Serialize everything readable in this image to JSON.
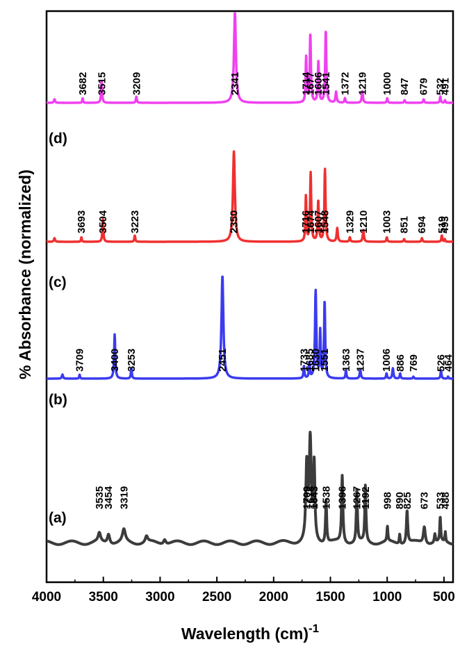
{
  "chart_data": {
    "type": "line",
    "title": "",
    "xlabel": "Wavelength (cm)",
    "xlabel_superscript": "-1",
    "ylabel": "% Absorbance (normalized)",
    "xlim": [
      4000,
      420
    ],
    "x_reversed": true,
    "x_ticks": [
      4000,
      3500,
      3000,
      2500,
      2000,
      1500,
      1000,
      500
    ],
    "series": [
      {
        "name": "(a)",
        "color": "#3c3c3c",
        "peaks": [
          {
            "x": 3535,
            "h": 0.07,
            "w": 25,
            "label": "3535"
          },
          {
            "x": 3454,
            "h": 0.08,
            "w": 25,
            "label": "3454"
          },
          {
            "x": 3319,
            "h": 0.1,
            "w": 30,
            "label": "3319"
          },
          {
            "x": 3120,
            "h": 0.05,
            "w": 25
          },
          {
            "x": 2960,
            "h": 0.04,
            "w": 25
          },
          {
            "x": 1709,
            "h": 0.6,
            "w": 18,
            "label": "1709"
          },
          {
            "x": 1678,
            "h": 0.82,
            "w": 22,
            "label": "1678"
          },
          {
            "x": 1643,
            "h": 0.62,
            "w": 15,
            "label": "1643"
          },
          {
            "x": 1538,
            "h": 0.35,
            "w": 12,
            "label": "1538"
          },
          {
            "x": 1396,
            "h": 0.55,
            "w": 14,
            "label": "1396"
          },
          {
            "x": 1267,
            "h": 0.44,
            "w": 12,
            "label": "1267"
          },
          {
            "x": 1192,
            "h": 0.46,
            "w": 12,
            "label": "1192"
          },
          {
            "x": 998,
            "h": 0.12,
            "w": 10,
            "label": "998"
          },
          {
            "x": 890,
            "h": 0.08,
            "w": 10,
            "label": "890"
          },
          {
            "x": 825,
            "h": 0.27,
            "w": 14,
            "label": "825"
          },
          {
            "x": 673,
            "h": 0.14,
            "w": 20,
            "label": "673"
          },
          {
            "x": 580,
            "h": 0.07,
            "w": 12
          },
          {
            "x": 533,
            "h": 0.2,
            "w": 10,
            "label": "533"
          },
          {
            "x": 488,
            "h": 0.08,
            "w": 8,
            "label": "488"
          }
        ]
      },
      {
        "name": "(b)",
        "color": "#3b3bf0",
        "peaks": [
          {
            "x": 3860,
            "h": 0.04,
            "w": 12
          },
          {
            "x": 3709,
            "h": 0.04,
            "w": 8,
            "label": "3709"
          },
          {
            "x": 3400,
            "h": 0.43,
            "w": 12,
            "label": "3400"
          },
          {
            "x": 3253,
            "h": 0.1,
            "w": 10,
            "label": "3253"
          },
          {
            "x": 2451,
            "h": 1.0,
            "w": 20,
            "label": "2451"
          },
          {
            "x": 1733,
            "h": 0.12,
            "w": 10,
            "label": "1733"
          },
          {
            "x": 1685,
            "h": 0.15,
            "w": 10,
            "label": "1685"
          },
          {
            "x": 1630,
            "h": 0.85,
            "w": 14,
            "label": "1630"
          },
          {
            "x": 1590,
            "h": 0.45,
            "w": 10
          },
          {
            "x": 1551,
            "h": 0.75,
            "w": 12,
            "label": "1551"
          },
          {
            "x": 1363,
            "h": 0.08,
            "w": 10,
            "label": "1363"
          },
          {
            "x": 1237,
            "h": 0.09,
            "w": 12,
            "label": "1237"
          },
          {
            "x": 1006,
            "h": 0.05,
            "w": 10,
            "label": "1006"
          },
          {
            "x": 950,
            "h": 0.1,
            "w": 12
          },
          {
            "x": 886,
            "h": 0.05,
            "w": 10,
            "label": "886"
          },
          {
            "x": 769,
            "h": 0.02,
            "w": 10,
            "label": "769"
          },
          {
            "x": 526,
            "h": 0.08,
            "w": 10,
            "label": "526"
          },
          {
            "x": 464,
            "h": 0.02,
            "w": 8,
            "label": "464"
          }
        ]
      },
      {
        "name": "(c)",
        "color": "#f03030",
        "peaks": [
          {
            "x": 3930,
            "h": 0.04,
            "w": 12
          },
          {
            "x": 3693,
            "h": 0.05,
            "w": 8,
            "label": "3693"
          },
          {
            "x": 3504,
            "h": 0.25,
            "w": 10,
            "label": "3504"
          },
          {
            "x": 3223,
            "h": 0.07,
            "w": 10,
            "label": "3223"
          },
          {
            "x": 2350,
            "h": 1.0,
            "w": 20,
            "label": "2350"
          },
          {
            "x": 1716,
            "h": 0.5,
            "w": 10,
            "label": "1716"
          },
          {
            "x": 1674,
            "h": 0.76,
            "w": 12,
            "label": "1674"
          },
          {
            "x": 1607,
            "h": 0.45,
            "w": 12,
            "label": "1607"
          },
          {
            "x": 1548,
            "h": 0.8,
            "w": 12,
            "label": "1548"
          },
          {
            "x": 1440,
            "h": 0.15,
            "w": 12
          },
          {
            "x": 1329,
            "h": 0.05,
            "w": 10,
            "label": "1329"
          },
          {
            "x": 1210,
            "h": 0.13,
            "w": 12,
            "label": "1210"
          },
          {
            "x": 1003,
            "h": 0.05,
            "w": 10,
            "label": "1003"
          },
          {
            "x": 851,
            "h": 0.03,
            "w": 10,
            "label": "851"
          },
          {
            "x": 694,
            "h": 0.04,
            "w": 10,
            "label": "694"
          },
          {
            "x": 519,
            "h": 0.07,
            "w": 10,
            "label": "519"
          },
          {
            "x": 493,
            "h": 0.03,
            "w": 8,
            "label": "493"
          }
        ]
      },
      {
        "name": "(d)",
        "color": "#f040f0",
        "peaks": [
          {
            "x": 3930,
            "h": 0.04,
            "w": 12
          },
          {
            "x": 3682,
            "h": 0.05,
            "w": 8,
            "label": "3682"
          },
          {
            "x": 3515,
            "h": 0.25,
            "w": 10,
            "label": "3515"
          },
          {
            "x": 3209,
            "h": 0.07,
            "w": 10,
            "label": "3209"
          },
          {
            "x": 2341,
            "h": 1.0,
            "w": 20,
            "label": "2341"
          },
          {
            "x": 1714,
            "h": 0.5,
            "w": 10,
            "label": "1714"
          },
          {
            "x": 1677,
            "h": 0.76,
            "w": 12,
            "label": "1677"
          },
          {
            "x": 1606,
            "h": 0.45,
            "w": 12,
            "label": "1606"
          },
          {
            "x": 1541,
            "h": 0.8,
            "w": 12,
            "label": "1541"
          },
          {
            "x": 1450,
            "h": 0.12,
            "w": 12
          },
          {
            "x": 1372,
            "h": 0.05,
            "w": 10,
            "label": "1372"
          },
          {
            "x": 1219,
            "h": 0.13,
            "w": 12,
            "label": "1219"
          },
          {
            "x": 1000,
            "h": 0.05,
            "w": 10,
            "label": "1000"
          },
          {
            "x": 847,
            "h": 0.03,
            "w": 10,
            "label": "847"
          },
          {
            "x": 679,
            "h": 0.04,
            "w": 10,
            "label": "679"
          },
          {
            "x": 532,
            "h": 0.07,
            "w": 10,
            "label": "532"
          },
          {
            "x": 491,
            "h": 0.03,
            "w": 8,
            "label": "491"
          }
        ]
      }
    ]
  }
}
